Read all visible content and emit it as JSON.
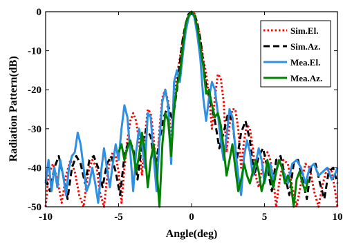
{
  "chart_data": {
    "type": "line",
    "xlabel": "Angle(deg)",
    "ylabel": "Radiation Pattern(dB)",
    "xlim": [
      -10,
      10
    ],
    "ylim": [
      -50,
      0
    ],
    "x_ticks": [
      -10,
      -5,
      0,
      5,
      10
    ],
    "x_tick_labels": [
      "-10",
      "-5",
      "0",
      "5",
      "10"
    ],
    "y_ticks": [
      0,
      -10,
      -20,
      -30,
      -40,
      -50
    ],
    "y_tick_labels": [
      "0",
      "-10",
      "-20",
      "-30",
      "-40",
      "-50"
    ],
    "grid": false,
    "legend_position": "top-right",
    "series": [
      {
        "name": "Sim.El.",
        "color": "#ff0000",
        "style": "dotted",
        "x": [
          -10,
          -9.8,
          -9.5,
          -9.2,
          -8.9,
          -8.6,
          -8.3,
          -8.0,
          -7.7,
          -7.4,
          -7.2,
          -7.0,
          -6.8,
          -6.5,
          -6.3,
          -6.0,
          -5.8,
          -5.6,
          -5.4,
          -5.2,
          -5.0,
          -4.8,
          -4.6,
          -4.4,
          -4.2,
          -4.0,
          -3.8,
          -3.6,
          -3.4,
          -3.2,
          -3.0,
          -2.8,
          -2.6,
          -2.4,
          -2.2,
          -2.0,
          -1.8,
          -1.6,
          -1.4,
          -1.2,
          -1.0,
          -0.8,
          -0.6,
          -0.4,
          -0.2,
          0,
          0.2,
          0.4,
          0.6,
          0.8,
          1.0,
          1.2,
          1.4,
          1.6,
          1.8,
          2.0,
          2.2,
          2.4,
          2.6,
          2.8,
          3.0,
          3.2,
          3.4,
          3.6,
          3.8,
          4.0,
          4.2,
          4.4,
          4.6,
          4.8,
          5.0,
          5.2,
          5.4,
          5.6,
          5.8,
          6.0,
          6.3,
          6.6,
          6.9,
          7.2,
          7.5,
          7.8,
          8.1,
          8.4,
          8.7,
          9.0,
          9.3,
          9.6,
          9.8,
          10
        ],
        "y": [
          -50,
          -42,
          -39,
          -43,
          -49,
          -42,
          -38,
          -41,
          -47,
          -50,
          -44,
          -40,
          -38,
          -40,
          -46,
          -50,
          -43,
          -38,
          -36,
          -37,
          -41,
          -49,
          -40,
          -33,
          -28,
          -26,
          -28,
          -33,
          -42,
          -32,
          -25,
          -26,
          -32,
          -42,
          -30,
          -22,
          -20,
          -23,
          -33,
          -24,
          -16,
          -12,
          -7,
          -3,
          -0.5,
          0,
          -0.5,
          -3,
          -7,
          -12,
          -16,
          -22,
          -30,
          -22,
          -16,
          -17,
          -23,
          -36,
          -29,
          -25,
          -25,
          -30,
          -40,
          -33,
          -29,
          -30,
          -35,
          -42,
          -45,
          -41,
          -37,
          -36,
          -38,
          -43,
          -50,
          -44,
          -38,
          -39,
          -45,
          -50,
          -44,
          -39,
          -40,
          -46,
          -50,
          -44,
          -40,
          -41,
          -45,
          -50
        ]
      },
      {
        "name": "Sim.Az.",
        "color": "#000000",
        "style": "dashed",
        "x": [
          -10,
          -9.7,
          -9.4,
          -9.1,
          -8.8,
          -8.5,
          -8.2,
          -7.9,
          -7.6,
          -7.3,
          -7.0,
          -6.7,
          -6.4,
          -6.1,
          -5.8,
          -5.5,
          -5.2,
          -4.9,
          -4.6,
          -4.3,
          -4.0,
          -3.7,
          -3.4,
          -3.1,
          -2.8,
          -2.5,
          -2.2,
          -1.9,
          -1.6,
          -1.3,
          -1.0,
          -0.8,
          -0.6,
          -0.4,
          -0.2,
          0,
          0.2,
          0.4,
          0.6,
          0.8,
          1.0,
          1.3,
          1.6,
          1.9,
          2.2,
          2.5,
          2.8,
          3.1,
          3.4,
          3.7,
          4.0,
          4.3,
          4.6,
          4.9,
          5.2,
          5.5,
          5.8,
          6.1,
          6.4,
          6.7,
          7.0,
          7.3,
          7.6,
          7.9,
          8.2,
          8.5,
          8.8,
          9.1,
          9.4,
          9.7,
          10
        ],
        "y": [
          -43,
          -46,
          -40,
          -37,
          -42,
          -48,
          -40,
          -37,
          -39,
          -44,
          -38,
          -37,
          -40,
          -45,
          -39,
          -37,
          -41,
          -47,
          -37,
          -33,
          -35,
          -43,
          -34,
          -30,
          -32,
          -40,
          -33,
          -27,
          -24,
          -28,
          -20,
          -13,
          -7,
          -3,
          -0.6,
          0,
          -0.6,
          -3,
          -7,
          -13,
          -19,
          -23,
          -28,
          -35,
          -31,
          -26,
          -28,
          -38,
          -31,
          -28,
          -33,
          -42,
          -37,
          -35,
          -40,
          -46,
          -38,
          -37,
          -42,
          -47,
          -39,
          -38,
          -43,
          -48,
          -40,
          -39,
          -44,
          -48,
          -41,
          -40,
          -44
        ]
      },
      {
        "name": "Mea.El.",
        "color": "#2f8fe0",
        "style": "solid",
        "x": [
          -10,
          -9.8,
          -9.6,
          -9.4,
          -9.2,
          -9.0,
          -8.8,
          -8.6,
          -8.4,
          -8.2,
          -8.0,
          -7.8,
          -7.6,
          -7.4,
          -7.2,
          -7.0,
          -6.8,
          -6.6,
          -6.4,
          -6.2,
          -6.0,
          -5.8,
          -5.6,
          -5.4,
          -5.2,
          -5.0,
          -4.8,
          -4.6,
          -4.4,
          -4.2,
          -4.0,
          -3.8,
          -3.6,
          -3.4,
          -3.2,
          -3.0,
          -2.8,
          -2.6,
          -2.4,
          -2.2,
          -2.0,
          -1.8,
          -1.6,
          -1.4,
          -1.2,
          -1.0,
          -0.8,
          -0.6,
          -0.4,
          -0.2,
          0,
          0.2,
          0.4,
          0.6,
          0.8,
          1.0,
          1.2,
          1.4,
          1.6,
          1.8,
          2.0,
          2.2,
          2.4,
          2.6,
          2.8,
          3.0,
          3.2,
          3.4,
          3.6,
          3.8,
          4.0,
          4.2,
          4.4,
          4.6,
          4.8,
          5.0,
          5.2,
          5.4,
          5.6,
          5.8,
          6.0,
          6.3,
          6.6,
          6.9,
          7.2,
          7.5,
          7.8,
          8.1,
          8.4,
          8.7,
          9.0,
          9.3,
          9.6,
          9.8,
          10
        ],
        "y": [
          -44,
          -38,
          -46,
          -40,
          -45,
          -38,
          -42,
          -47,
          -40,
          -37,
          -36,
          -31,
          -34,
          -40,
          -46,
          -44,
          -40,
          -44,
          -49,
          -41,
          -35,
          -40,
          -45,
          -39,
          -34,
          -38,
          -30,
          -24,
          -27,
          -36,
          -46,
          -36,
          -30,
          -34,
          -40,
          -26,
          -27,
          -37,
          -46,
          -33,
          -23,
          -20,
          -24,
          -39,
          -18,
          -15,
          -18,
          -11,
          -5,
          -1.5,
          0,
          -1.5,
          -6,
          -12,
          -22,
          -28,
          -22,
          -18,
          -20,
          -26,
          -33,
          -38,
          -32,
          -25,
          -27,
          -35,
          -42,
          -47,
          -37,
          -33,
          -36,
          -42,
          -39,
          -35,
          -38,
          -44,
          -40,
          -39,
          -43,
          -41,
          -38,
          -41,
          -44,
          -39,
          -38,
          -40,
          -44,
          -40,
          -39,
          -42,
          -41,
          -40,
          -43,
          -42,
          -40
        ]
      },
      {
        "name": "Mea.Az.",
        "color": "#008000",
        "style": "solid",
        "x": [
          -5.0,
          -4.8,
          -4.6,
          -4.4,
          -4.2,
          -4.0,
          -3.8,
          -3.6,
          -3.4,
          -3.2,
          -3.0,
          -2.8,
          -2.6,
          -2.4,
          -2.2,
          -2.0,
          -1.8,
          -1.6,
          -1.4,
          -1.2,
          -1.0,
          -0.8,
          -0.6,
          -0.4,
          -0.2,
          0,
          0.2,
          0.4,
          0.6,
          0.8,
          1.0,
          1.2,
          1.4,
          1.6,
          1.8,
          2.0,
          2.2,
          2.4,
          2.6,
          2.8,
          3.0,
          3.2,
          3.4,
          3.6,
          3.8,
          4.0,
          4.2,
          4.4,
          4.6,
          4.8,
          5.0,
          5.2,
          5.4,
          5.6,
          5.8,
          6.0,
          6.2,
          6.4,
          6.6,
          6.8,
          7.0,
          7.2,
          7.4,
          7.6,
          7.8,
          8.0
        ],
        "y": [
          -36,
          -34,
          -38,
          -35,
          -33,
          -36,
          -41,
          -37,
          -31,
          -36,
          -45,
          -38,
          -34,
          -40,
          -50,
          -34,
          -26,
          -28,
          -37,
          -25,
          -19,
          -16,
          -9,
          -3,
          -1,
          0,
          -1,
          -4,
          -9,
          -14,
          -21,
          -20,
          -24,
          -27,
          -26,
          -29,
          -35,
          -42,
          -38,
          -34,
          -40,
          -46,
          -43,
          -39,
          -42,
          -44,
          -41,
          -38,
          -41,
          -46,
          -43,
          -38,
          -42,
          -45,
          -41,
          -38,
          -40,
          -44,
          -42,
          -44,
          -50,
          -43,
          -41,
          -44,
          -46,
          -43
        ]
      }
    ]
  }
}
